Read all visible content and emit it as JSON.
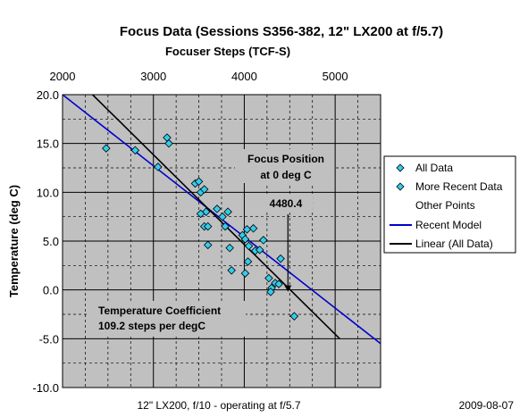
{
  "chart_data": {
    "type": "scatter",
    "title": "Focus Data (Sessions S356-382, 12\" LX200 at f/5.7)",
    "top_axis_label": "Focuser Steps (TCF-S)",
    "ylabel": "Temperature (deg C)",
    "xlim": [
      2000,
      5500
    ],
    "ylim": [
      -10,
      20
    ],
    "x_ticks": [
      2000,
      3000,
      4000,
      5000
    ],
    "y_ticks": [
      "20.0",
      "15.0",
      "10.0",
      "5.0",
      "0.0",
      "-5.0",
      "-10.0"
    ],
    "grid": true,
    "legend_position": "right",
    "series": [
      {
        "name": "All Data",
        "color": "#33ccee",
        "points": [
          [
            2480,
            14.5
          ],
          [
            2800,
            14.3
          ],
          [
            3050,
            12.6
          ],
          [
            3150,
            15.6
          ],
          [
            3170,
            15.0
          ],
          [
            3460,
            10.9
          ],
          [
            3500,
            11.1
          ],
          [
            3520,
            10.0
          ],
          [
            3560,
            10.3
          ],
          [
            3580,
            8.0
          ],
          [
            3520,
            7.8
          ],
          [
            3560,
            6.5
          ],
          [
            3600,
            6.5
          ],
          [
            3600,
            4.6
          ],
          [
            3700,
            8.3
          ],
          [
            3760,
            7.5
          ],
          [
            3790,
            6.5
          ],
          [
            3820,
            8.0
          ],
          [
            3840,
            4.3
          ],
          [
            3860,
            2.0
          ],
          [
            3980,
            5.6
          ],
          [
            4010,
            5.2
          ],
          [
            4030,
            6.2
          ],
          [
            4050,
            4.5
          ],
          [
            4040,
            2.9
          ],
          [
            4010,
            1.7
          ],
          [
            4100,
            6.3
          ],
          [
            4120,
            4.0
          ],
          [
            4170,
            4.1
          ],
          [
            4210,
            5.1
          ],
          [
            4270,
            1.2
          ],
          [
            4300,
            0.2
          ],
          [
            4290,
            -0.2
          ],
          [
            4340,
            0.7
          ],
          [
            4400,
            3.2
          ],
          [
            4380,
            0.6
          ],
          [
            4550,
            -2.7
          ]
        ]
      },
      {
        "name": "More Recent Data",
        "color": "#33ccee",
        "points": []
      },
      {
        "name": "Other Points",
        "color": "none",
        "points": []
      },
      {
        "name": "Recent Model",
        "type": "line",
        "color": "#0000cc",
        "points": [
          [
            2000,
            20.0
          ],
          [
            5500,
            -5.5
          ]
        ]
      },
      {
        "name": "Linear (All Data)",
        "type": "line",
        "color": "#000000",
        "points": [
          [
            2330,
            20.0
          ],
          [
            5050,
            -5.0
          ]
        ]
      }
    ],
    "annotations": {
      "focus_position_line1": "Focus Position",
      "focus_position_line2": "at 0 deg C",
      "focus_position_value": "4480.4",
      "focus_marker": [
        4480.4,
        0.0
      ],
      "temp_coeff_line1": "Temperature Coefficient",
      "temp_coeff_line2": "109.2 steps per degC"
    }
  },
  "footer": {
    "telescope": "12\" LX200, f/10 -  operating at f/5.7",
    "date": "2009-08-07"
  }
}
